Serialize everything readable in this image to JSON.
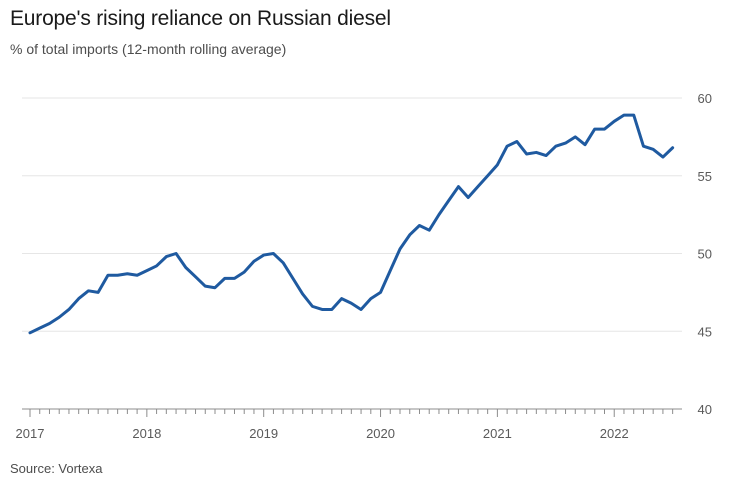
{
  "title": "Europe's rising reliance on Russian diesel",
  "subtitle": "% of total imports (12-month rolling average)",
  "source": "Source: Vortexa",
  "colors": {
    "line": "#1f5aa0",
    "grid": "#e6e6e6",
    "axis": "#8c8c8c",
    "text": "#1a1a1a",
    "muted": "#4d4d4d"
  },
  "chart_data": {
    "type": "line",
    "title": "Europe's rising reliance on Russian diesel",
    "subtitle": "% of total imports (12-month rolling average)",
    "xlabel": "",
    "ylabel": "",
    "ylim": [
      40,
      60
    ],
    "xlim": [
      2017.0,
      2022.58
    ],
    "yticks": [
      40,
      45,
      50,
      55,
      60
    ],
    "xticks": [
      {
        "value": 2017,
        "label": "2017"
      },
      {
        "value": 2018,
        "label": "2018"
      },
      {
        "value": 2019,
        "label": "2019"
      },
      {
        "value": 2020,
        "label": "2020"
      },
      {
        "value": 2021,
        "label": "2021"
      },
      {
        "value": 2022,
        "label": "2022"
      }
    ],
    "y_axis_position": "right",
    "grid": true,
    "legend": "none",
    "series": [
      {
        "x": [
          2017.0,
          2017.083,
          2017.167,
          2017.25,
          2017.333,
          2017.417,
          2017.5,
          2017.583,
          2017.667,
          2017.75,
          2017.833,
          2017.917,
          2018.0,
          2018.083,
          2018.167,
          2018.25,
          2018.333,
          2018.417,
          2018.5,
          2018.583,
          2018.667,
          2018.75,
          2018.833,
          2018.917,
          2019.0,
          2019.083,
          2019.167,
          2019.25,
          2019.333,
          2019.417,
          2019.5,
          2019.583,
          2019.667,
          2019.75,
          2019.833,
          2019.917,
          2020.0,
          2020.083,
          2020.167,
          2020.25,
          2020.333,
          2020.417,
          2020.5,
          2020.583,
          2020.667,
          2020.75,
          2020.833,
          2020.917,
          2021.0,
          2021.083,
          2021.167,
          2021.25,
          2021.333,
          2021.417,
          2021.5,
          2021.583,
          2021.667,
          2021.75,
          2021.833,
          2021.917,
          2022.0,
          2022.083,
          2022.167,
          2022.25,
          2022.333,
          2022.417,
          2022.5
        ],
        "values": [
          44.9,
          45.2,
          45.5,
          45.9,
          46.4,
          47.1,
          47.6,
          47.5,
          48.6,
          48.6,
          48.7,
          48.6,
          48.9,
          49.2,
          49.8,
          50.0,
          49.1,
          48.5,
          47.9,
          47.8,
          48.4,
          48.4,
          48.8,
          49.5,
          49.9,
          50.0,
          49.4,
          48.4,
          47.4,
          46.6,
          46.4,
          46.4,
          47.1,
          46.8,
          46.4,
          47.1,
          47.5,
          48.9,
          50.3,
          51.2,
          51.8,
          51.5,
          52.5,
          53.4,
          54.3,
          53.6,
          54.3,
          55.0,
          55.7,
          56.9,
          57.2,
          56.4,
          56.5,
          56.3,
          56.9,
          57.1,
          57.5,
          57.0,
          58.0,
          58.0,
          58.5,
          58.9,
          58.9,
          56.9,
          56.7,
          56.2,
          56.8
        ]
      }
    ]
  }
}
